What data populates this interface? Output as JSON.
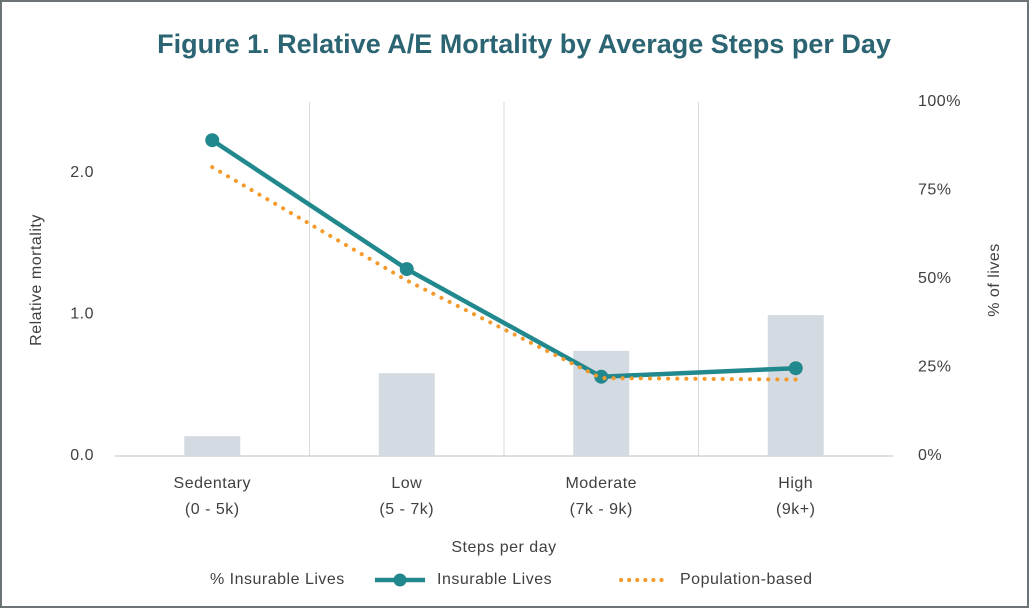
{
  "chart_data": {
    "type": "combo",
    "title": "Figure 1. Relative A/E Mortality by Average Steps per Day",
    "x_label": "Steps per day",
    "y_label": "Relative mortality",
    "y2_label": "% of lives",
    "categories": [
      [
        "Sedentary",
        "(0 - 5k)"
      ],
      [
        "Low",
        "(5 - 7k)"
      ],
      [
        "Moderate",
        "(7k - 9k)"
      ],
      [
        "High",
        "(9k+)"
      ]
    ],
    "ylim": [
      0,
      2.5
    ],
    "yticks": [
      {
        "value": 0,
        "label": "0.0"
      },
      {
        "value": 1,
        "label": "1.0"
      },
      {
        "value": 2,
        "label": "2.0"
      }
    ],
    "y2lim": [
      0,
      100
    ],
    "y2ticks": [
      {
        "value": 0,
        "label": "0%"
      },
      {
        "value": 25,
        "label": "25%"
      },
      {
        "value": 50,
        "label": "50%"
      },
      {
        "value": 75,
        "label": "75%"
      },
      {
        "value": 100,
        "label": "100%"
      }
    ],
    "series": [
      {
        "name": "% Insurable Lives",
        "kind": "bar",
        "axis": "y2",
        "color": "#d3dae1",
        "values": [
          5.6,
          23.4,
          29.7,
          39.8
        ]
      },
      {
        "name": "Insurable Lives",
        "kind": "line",
        "axis": "y",
        "color": "#21898d",
        "values": [
          2.23,
          1.32,
          0.56,
          0.62
        ]
      },
      {
        "name": "Population-based",
        "kind": "dotted",
        "axis": "y",
        "color": "#f39a2b",
        "values": [
          2.04,
          1.24,
          0.55,
          0.54
        ]
      }
    ]
  }
}
